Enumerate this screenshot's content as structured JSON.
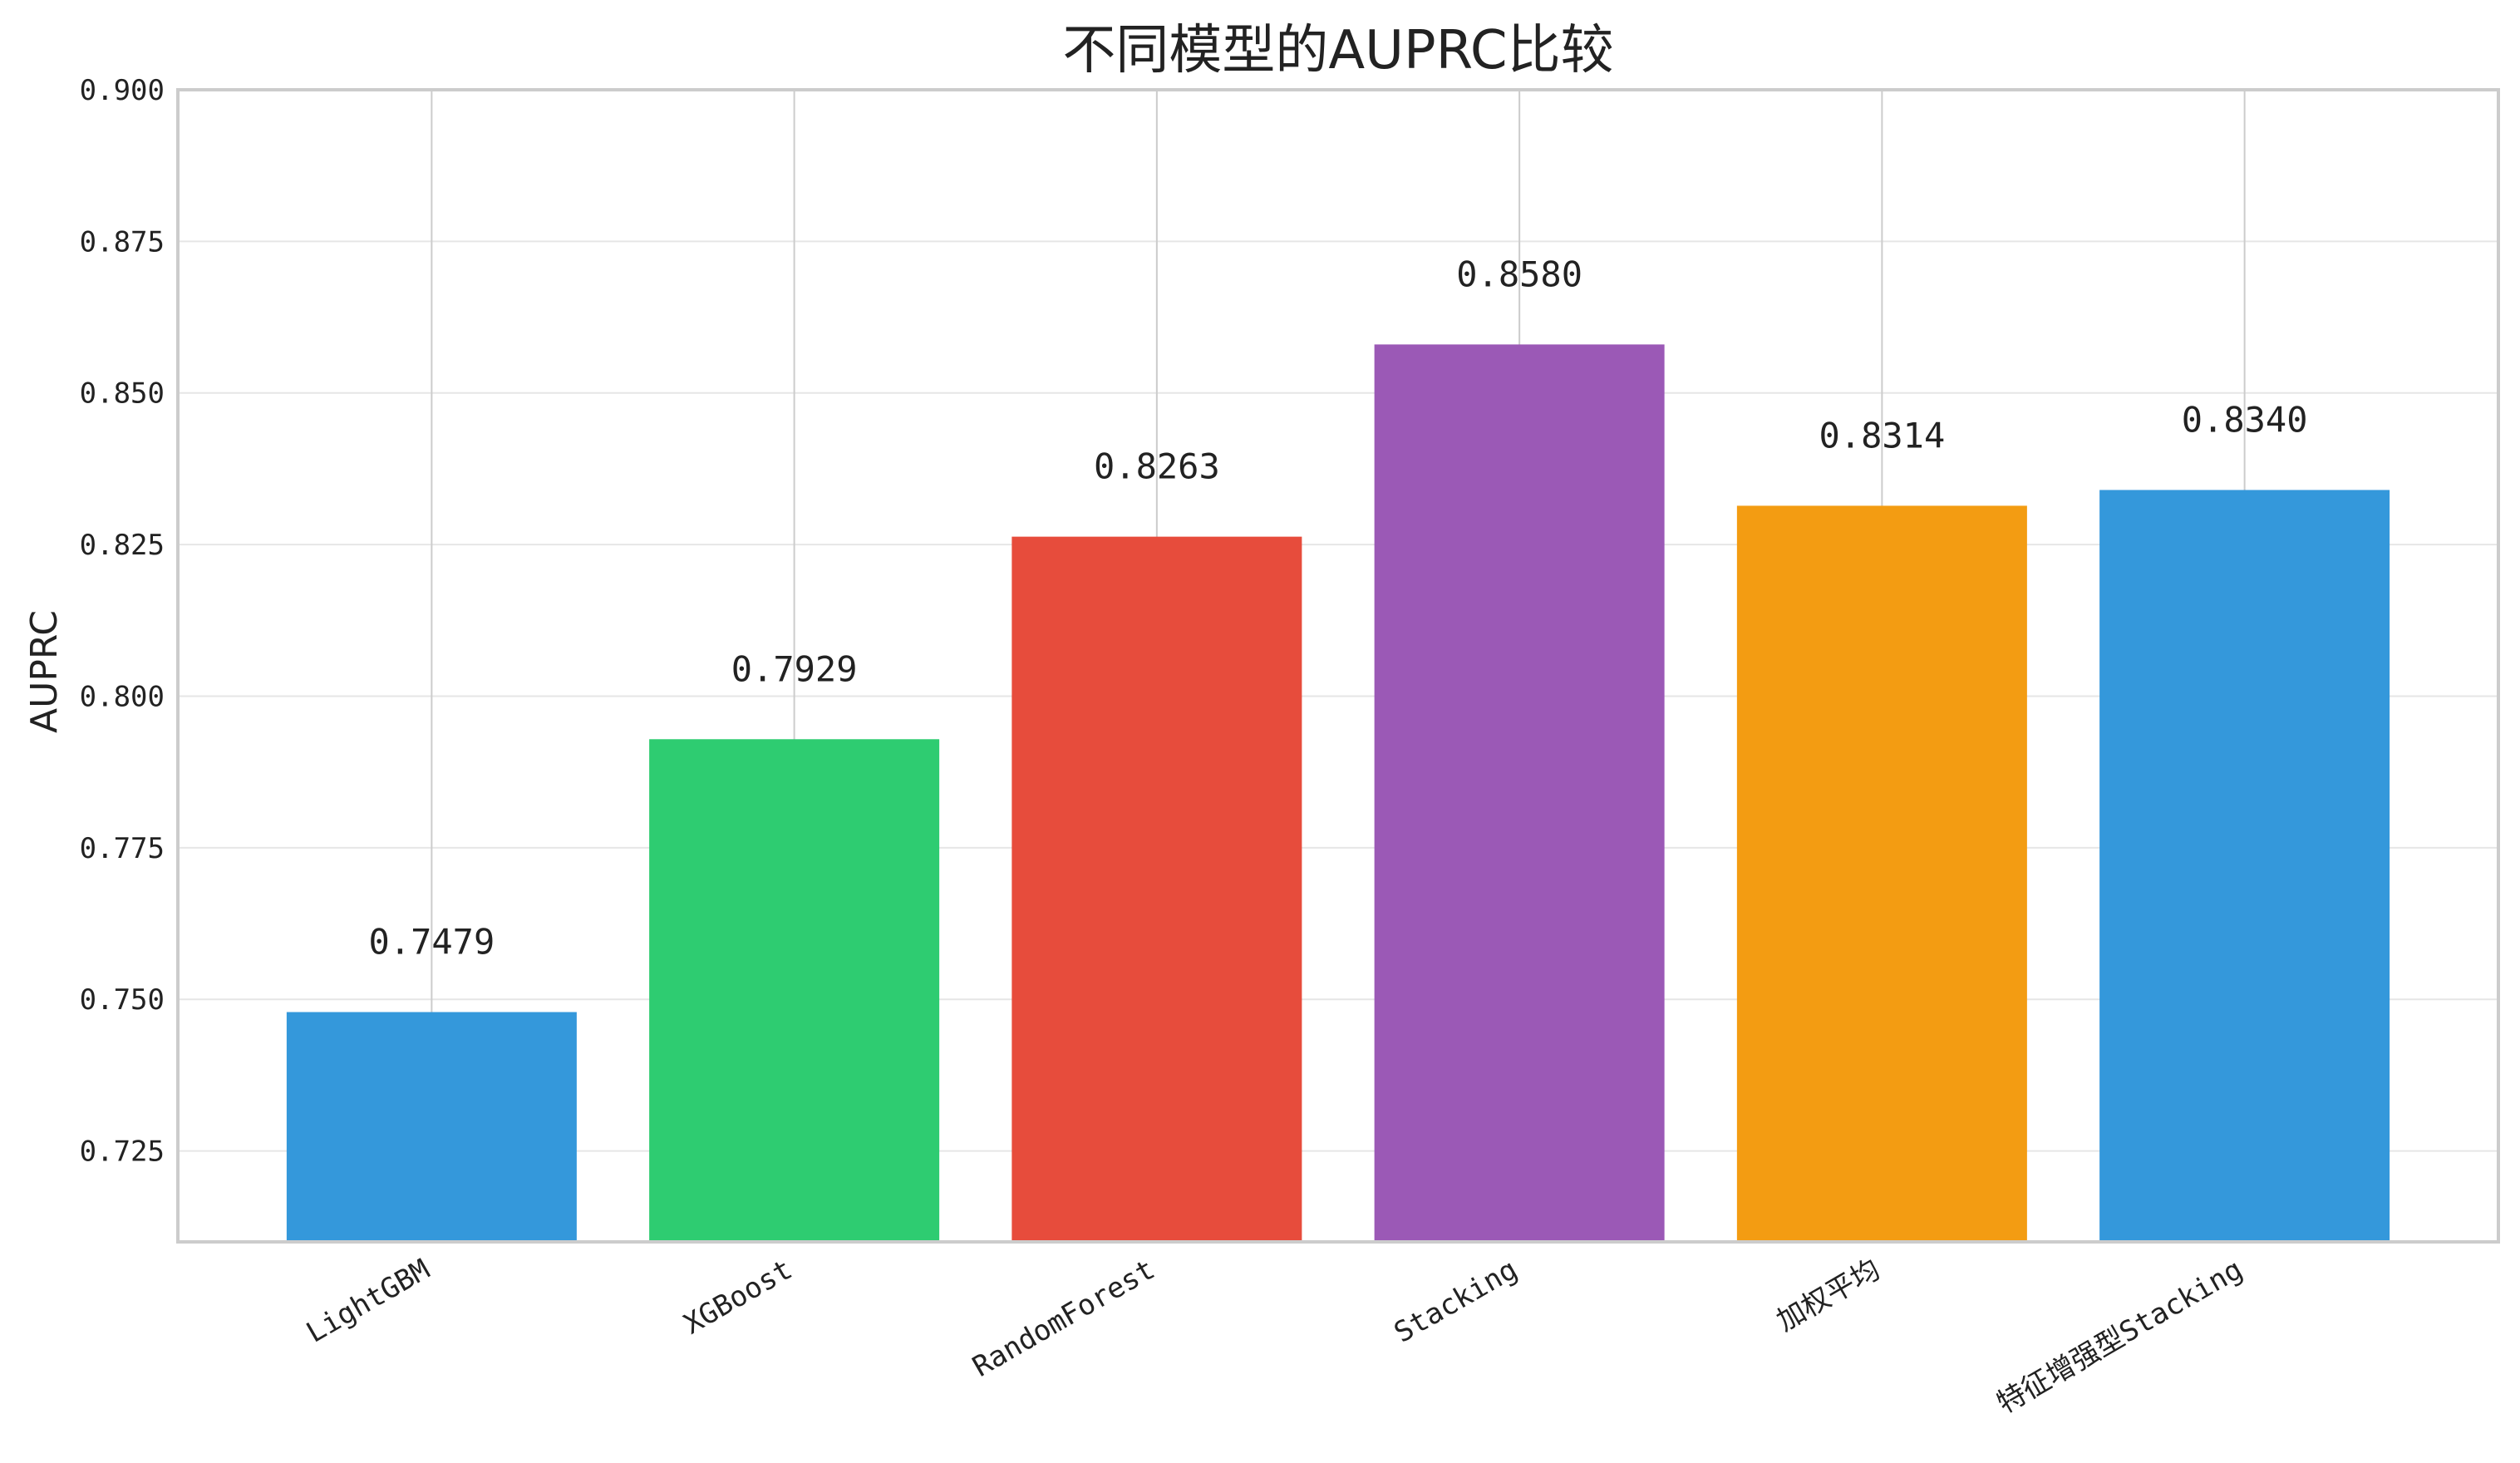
{
  "chart_data": {
    "type": "bar",
    "title": "不同模型的AUPRC比较",
    "xlabel": "",
    "ylabel": "AUPRC",
    "categories": [
      "LightGBM",
      "XGBoost",
      "RandomForest",
      "Stacking",
      "加权平均",
      "特征增强型Stacking"
    ],
    "values": [
      0.7479,
      0.7929,
      0.8263,
      0.858,
      0.8314,
      0.834
    ],
    "value_labels": [
      "0.7479",
      "0.7929",
      "0.8263",
      "0.8580",
      "0.8314",
      "0.8340"
    ],
    "colors": [
      "#3498db",
      "#2ecc71",
      "#e74c3c",
      "#9b59b6",
      "#f39c12",
      "#3498db"
    ],
    "ylim": [
      0.71,
      0.9
    ],
    "yticks": [
      0.725,
      0.75,
      0.775,
      0.8,
      0.825,
      0.85,
      0.875,
      0.9
    ],
    "ytick_labels": [
      "0.725",
      "0.750",
      "0.775",
      "0.800",
      "0.825",
      "0.850",
      "0.875",
      "0.900"
    ],
    "grid": true,
    "xtick_rotation": "30"
  }
}
